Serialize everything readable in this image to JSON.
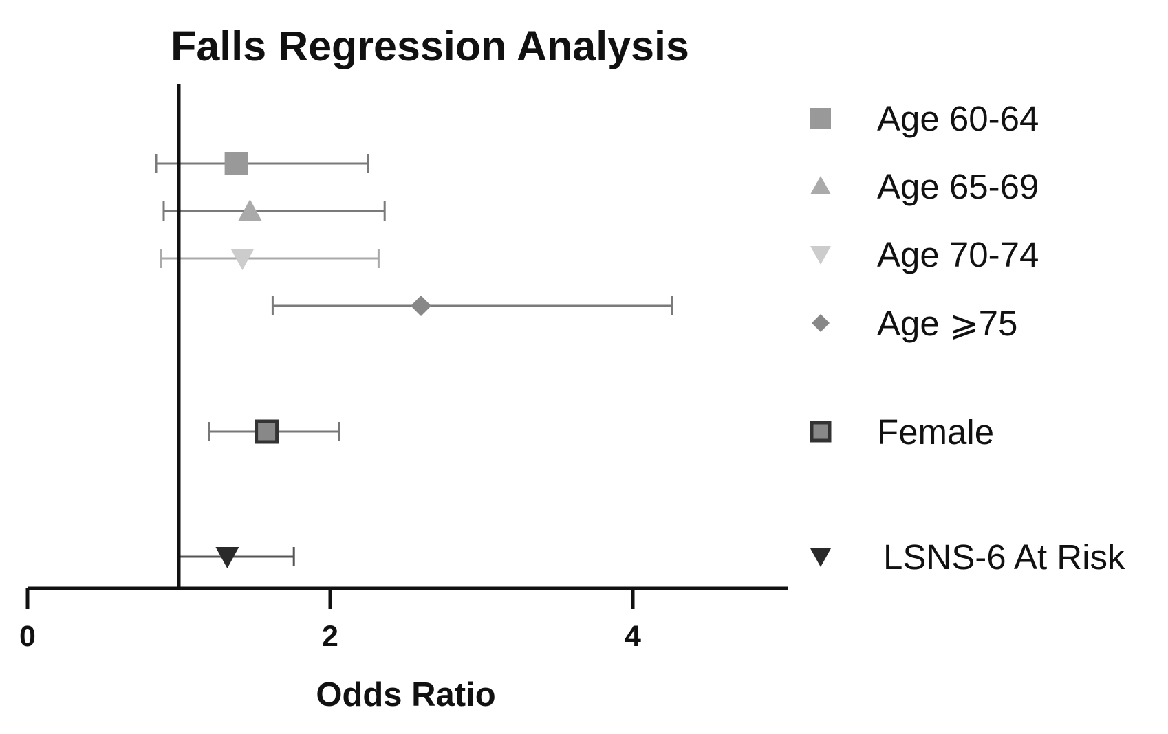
{
  "chart_data": {
    "type": "forest",
    "title": "Falls Regression Analysis",
    "xlabel": "Odds Ratio",
    "ylabel": "",
    "xlim": [
      0,
      5
    ],
    "xticks": [
      {
        "value": 0,
        "label": "0"
      },
      {
        "value": 2,
        "label": "2"
      },
      {
        "value": 4,
        "label": "4"
      }
    ],
    "reference_line": 1,
    "grid": false,
    "legend_position": "right",
    "series": [
      {
        "name": "Age 60-64",
        "or": 1.38,
        "ci": [
          0.85,
          2.25
        ],
        "marker": "square",
        "color": "#999999",
        "ci_color": "#7a7a7a"
      },
      {
        "name": "Age 65-69",
        "or": 1.47,
        "ci": [
          0.9,
          2.36
        ],
        "marker": "triangle-up",
        "color": "#aaaaaa",
        "ci_color": "#7a7a7a"
      },
      {
        "name": "Age 70-74",
        "or": 1.42,
        "ci": [
          0.88,
          2.32
        ],
        "marker": "triangle-down",
        "color": "#cccccc",
        "ci_color": "#aaaaaa"
      },
      {
        "name": "Age ⩾75",
        "or": 2.6,
        "ci": [
          1.62,
          4.26
        ],
        "marker": "diamond",
        "color": "#888888",
        "ci_color": "#7a7a7a"
      },
      {
        "name": "Female",
        "or": 1.58,
        "ci": [
          1.2,
          2.06
        ],
        "marker": "square-outlined",
        "color": "#888888",
        "ci_color": "#777777"
      },
      {
        "name": "LSNS-6 At Risk",
        "or": 1.32,
        "ci": [
          1.0,
          1.76
        ],
        "marker": "triangle-down",
        "color": "#2a2a2a",
        "ci_color": "#555555"
      }
    ]
  }
}
